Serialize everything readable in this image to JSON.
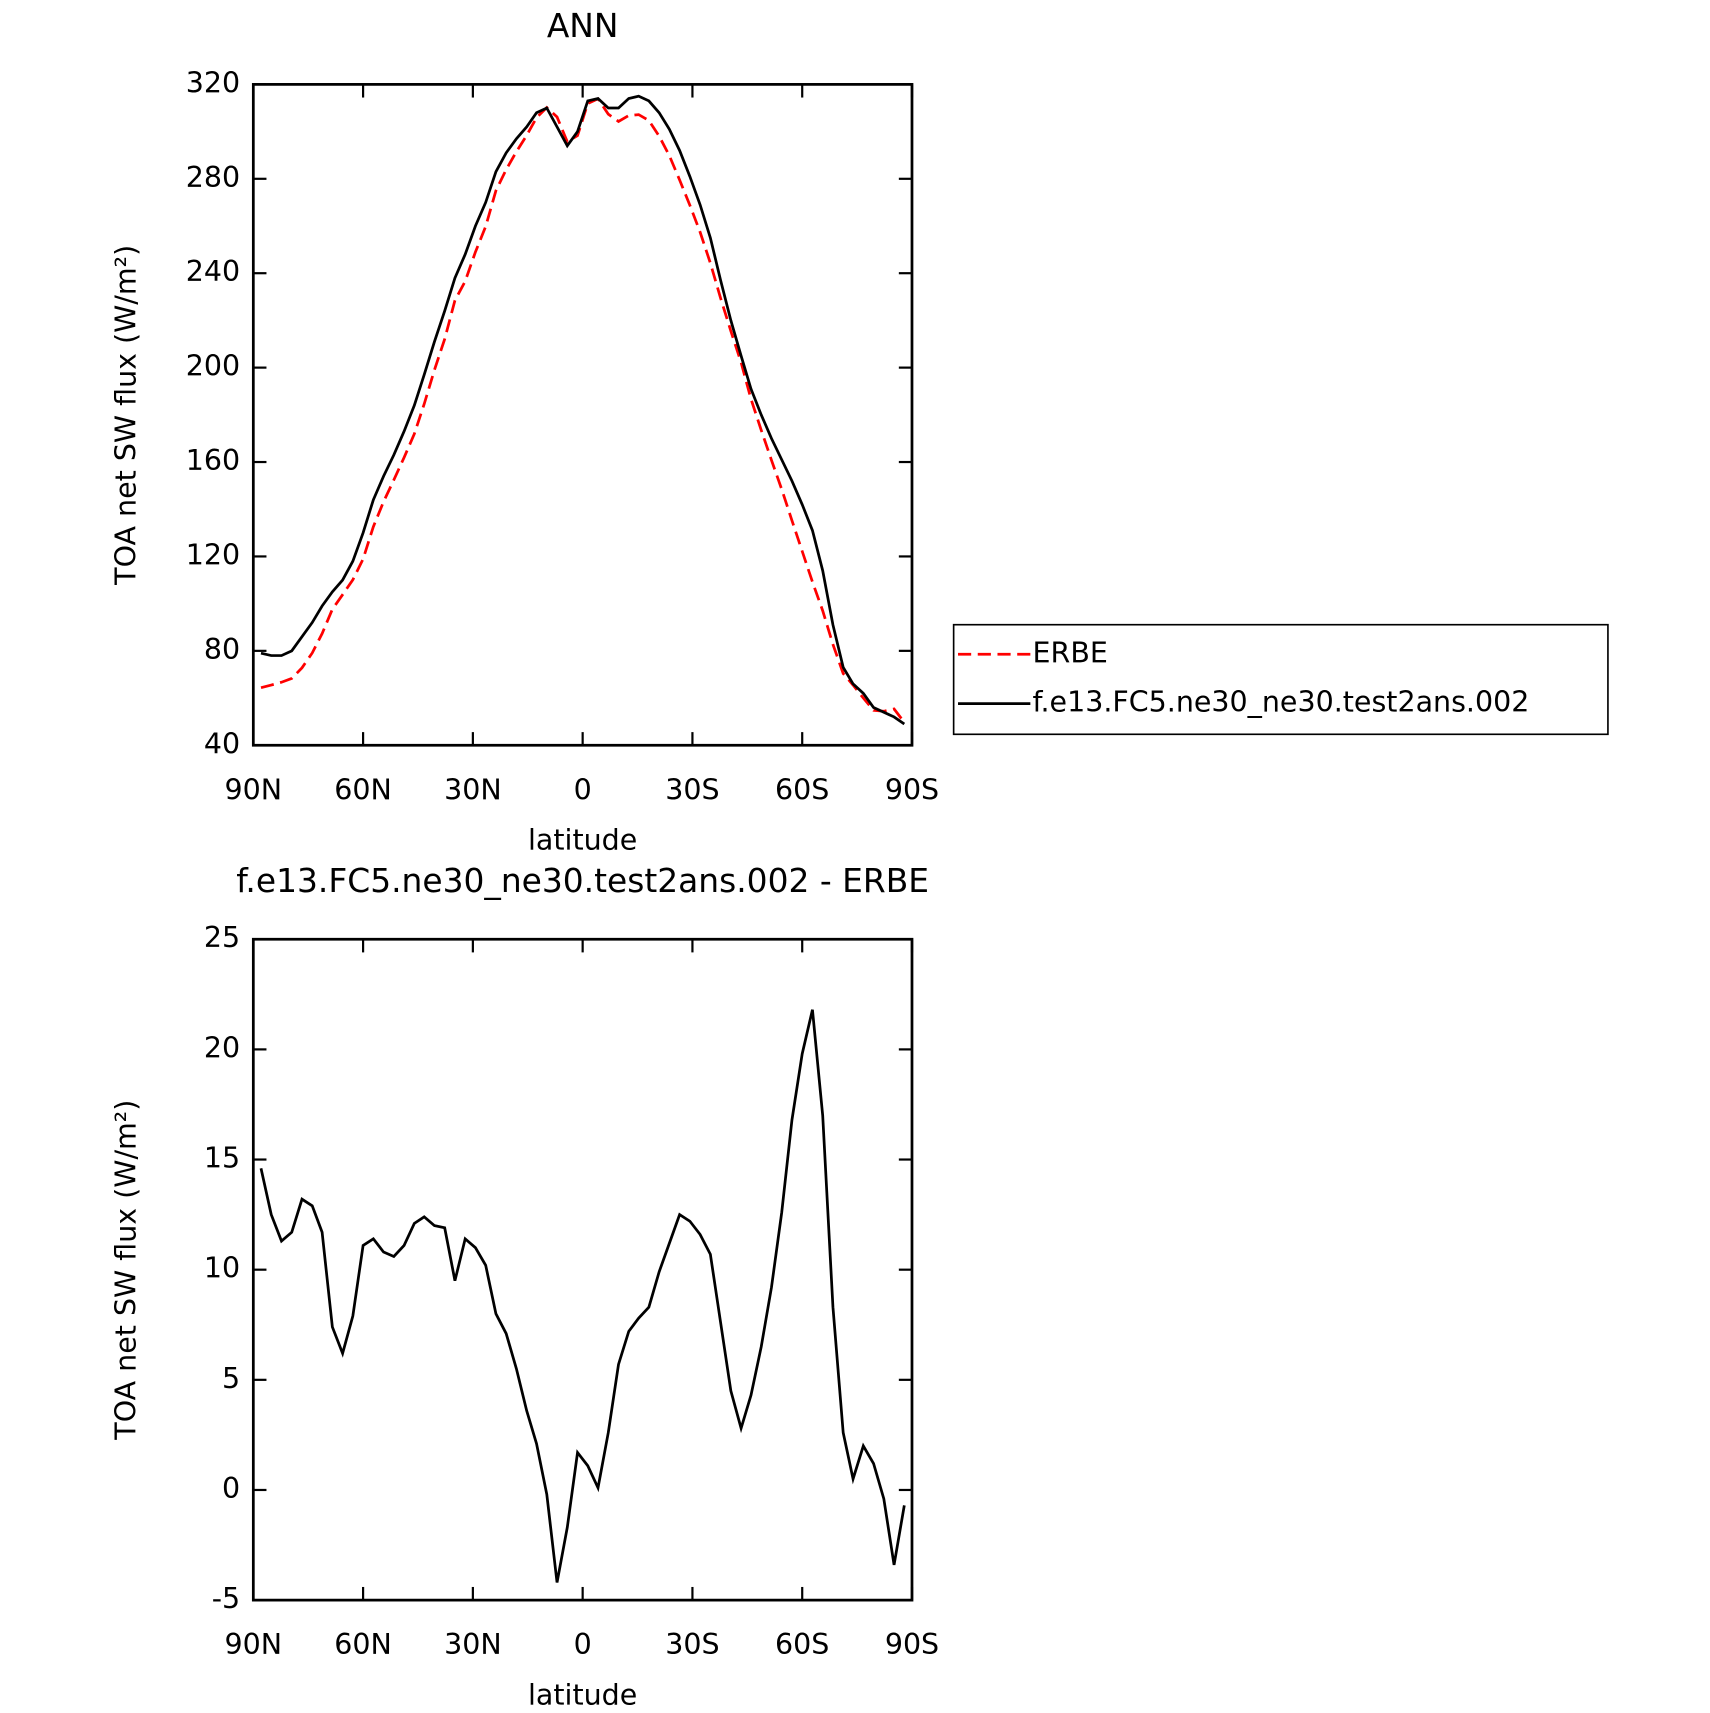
{
  "chart_data": [
    {
      "type": "line",
      "title": "ANN",
      "xlabel": "latitude",
      "ylabel": "TOA net SW flux (W/m²)",
      "x": [
        87.9,
        85.1,
        82.3,
        79.5,
        76.7,
        73.9,
        71.2,
        68.4,
        65.6,
        62.8,
        60.0,
        57.2,
        54.4,
        51.6,
        48.8,
        46.0,
        43.3,
        40.5,
        37.7,
        34.9,
        32.1,
        29.3,
        26.5,
        23.7,
        20.9,
        18.1,
        15.3,
        12.6,
        9.8,
        7.0,
        4.2,
        1.4,
        -1.4,
        -4.2,
        -7.0,
        -9.8,
        -12.6,
        -15.3,
        -18.1,
        -20.9,
        -23.7,
        -26.5,
        -29.3,
        -32.1,
        -34.9,
        -37.7,
        -40.5,
        -43.3,
        -46.0,
        -48.8,
        -51.6,
        -54.4,
        -57.2,
        -60.0,
        -62.8,
        -65.6,
        -68.4,
        -71.2,
        -73.9,
        -76.7,
        -79.5,
        -82.3,
        -85.1,
        -87.9
      ],
      "series": [
        {
          "name": "ERBE",
          "color": "#ff0000",
          "style": "dashed",
          "values": [
            64.4,
            65.5,
            66.7,
            68.3,
            72.8,
            79.1,
            87.3,
            97.6,
            103.8,
            110.1,
            118.9,
            132.6,
            143.2,
            152.4,
            161.9,
            171.9,
            184.6,
            199.0,
            212.1,
            228.5,
            236.6,
            249.0,
            259.8,
            275.0,
            283.9,
            291.5,
            298.4,
            305.9,
            310.2,
            306.2,
            295.7,
            298.3,
            311.9,
            313.9,
            307.4,
            304.3,
            306.8,
            307.2,
            304.7,
            298.1,
            289.8,
            279.5,
            268.8,
            257.4,
            244.3,
            229.4,
            215.5,
            202.2,
            186.7,
            173.5,
            160.8,
            148.4,
            135.2,
            122.2,
            109.2,
            97.0,
            82.7,
            70.4,
            65.5,
            60.0,
            54.8,
            54.4,
            55.4,
            49.7
          ]
        },
        {
          "name": "f.e13.FC5.ne30_ne30.test2ans.002",
          "color": "#000000",
          "style": "solid",
          "values": [
            79,
            78,
            78,
            80,
            86,
            92,
            99,
            105,
            110,
            118,
            130,
            144,
            154,
            163,
            173,
            184,
            197,
            211,
            224,
            238,
            248,
            260,
            270,
            283,
            291,
            297,
            302,
            308,
            310,
            302,
            294,
            300,
            313,
            314,
            310,
            310,
            314,
            315,
            313,
            308,
            301,
            292,
            281,
            269,
            255,
            237,
            220,
            205,
            191,
            180,
            170,
            161,
            152,
            142,
            131,
            114,
            91,
            73,
            66,
            62,
            56,
            54,
            52,
            49
          ]
        }
      ],
      "xlim": [
        90,
        -90
      ],
      "xticks": [
        {
          "value": 90,
          "label": "90N"
        },
        {
          "value": 60,
          "label": "60N"
        },
        {
          "value": 30,
          "label": "30N"
        },
        0,
        {
          "value": -30,
          "label": "30S"
        },
        {
          "value": -60,
          "label": "60S"
        },
        {
          "value": -90,
          "label": "90S"
        }
      ],
      "ylim": [
        40,
        320
      ],
      "yticks": [
        40,
        80,
        120,
        160,
        200,
        240,
        280,
        320
      ],
      "legend": "outside-right"
    },
    {
      "type": "line",
      "title": "f.e13.FC5.ne30_ne30.test2ans.002 - ERBE",
      "xlabel": "latitude",
      "ylabel": "TOA net SW flux (W/m²)",
      "x": [
        87.9,
        85.1,
        82.3,
        79.5,
        76.7,
        73.9,
        71.2,
        68.4,
        65.6,
        62.8,
        60.0,
        57.2,
        54.4,
        51.6,
        48.8,
        46.0,
        43.3,
        40.5,
        37.7,
        34.9,
        32.1,
        29.3,
        26.5,
        23.7,
        20.9,
        18.1,
        15.3,
        12.6,
        9.8,
        7.0,
        4.2,
        1.4,
        -1.4,
        -4.2,
        -7.0,
        -9.8,
        -12.6,
        -15.3,
        -18.1,
        -20.9,
        -23.7,
        -26.5,
        -29.3,
        -32.1,
        -34.9,
        -37.7,
        -40.5,
        -43.3,
        -46.0,
        -48.8,
        -51.6,
        -54.4,
        -57.2,
        -60.0,
        -62.8,
        -65.6,
        -68.4,
        -71.2,
        -73.9,
        -76.7,
        -79.5,
        -82.3,
        -85.1,
        -87.9
      ],
      "color": "#000000",
      "values": [
        14.6,
        12.5,
        11.3,
        11.7,
        13.2,
        12.9,
        11.7,
        7.4,
        6.2,
        7.9,
        11.1,
        11.4,
        10.8,
        10.6,
        11.1,
        12.1,
        12.4,
        12.0,
        11.9,
        9.5,
        11.4,
        11.0,
        10.2,
        8.0,
        7.1,
        5.5,
        3.6,
        2.1,
        -0.2,
        -4.2,
        -1.7,
        1.7,
        1.1,
        0.1,
        2.6,
        5.7,
        7.2,
        7.8,
        8.3,
        9.9,
        11.2,
        12.5,
        12.2,
        11.6,
        10.7,
        7.6,
        4.5,
        2.8,
        4.3,
        6.5,
        9.2,
        12.6,
        16.8,
        19.8,
        21.8,
        17.0,
        8.3,
        2.6,
        0.5,
        2.0,
        1.2,
        -0.4,
        -3.4,
        -0.7
      ],
      "xlim": [
        90,
        -90
      ],
      "xticks": [
        {
          "value": 90,
          "label": "90N"
        },
        {
          "value": 60,
          "label": "60N"
        },
        {
          "value": 30,
          "label": "30N"
        },
        0,
        {
          "value": -30,
          "label": "30S"
        },
        {
          "value": -60,
          "label": "60S"
        },
        {
          "value": -90,
          "label": "90S"
        }
      ],
      "ylim": [
        -5,
        25
      ],
      "yticks": [
        -5,
        0,
        5,
        10,
        15,
        20,
        25
      ]
    }
  ]
}
